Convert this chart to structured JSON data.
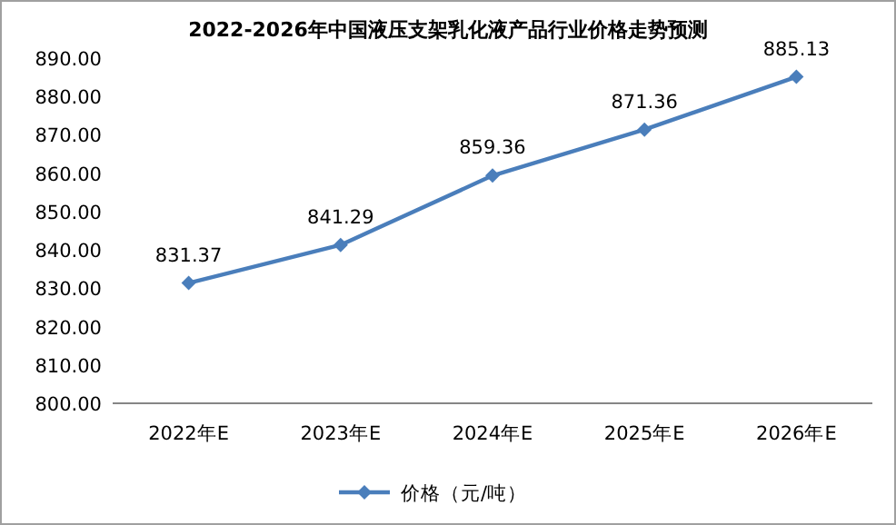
{
  "chart_data": {
    "type": "line",
    "title": "2022-2026年中国液压支架乳化液产品行业价格走势预测",
    "categories": [
      "2022年E",
      "2023年E",
      "2024年E",
      "2025年E",
      "2026年E"
    ],
    "series": [
      {
        "name": "价格（元/吨）",
        "color": "#4a7ebb",
        "values": [
          831.37,
          841.29,
          859.36,
          871.36,
          885.13
        ]
      }
    ],
    "ylim": [
      800,
      890
    ],
    "yticks": [
      {
        "value": 800,
        "label": "800.00"
      },
      {
        "value": 810,
        "label": "810.00"
      },
      {
        "value": 820,
        "label": "820.00"
      },
      {
        "value": 830,
        "label": "830.00"
      },
      {
        "value": 840,
        "label": "840.00"
      },
      {
        "value": 850,
        "label": "850.00"
      },
      {
        "value": 860,
        "label": "860.00"
      },
      {
        "value": 870,
        "label": "870.00"
      },
      {
        "value": 880,
        "label": "880.00"
      },
      {
        "value": 890,
        "label": "890.00"
      }
    ],
    "data_labels": true,
    "legend": "bottom",
    "marker": "diamond",
    "line_style": "solid"
  }
}
